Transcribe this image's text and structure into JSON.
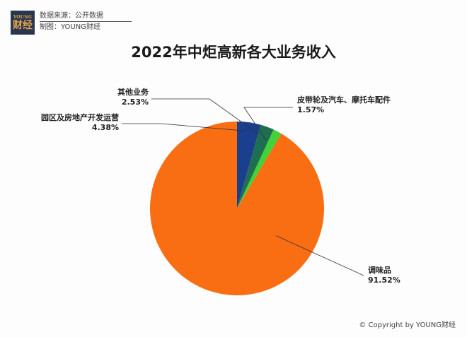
{
  "header": {
    "logo_top": "YOUNG",
    "logo_bottom": "财经",
    "source_line": "数据来源：公开数据",
    "made_by_line": "制图：YOUNG财经"
  },
  "footer": {
    "copyright": "© Copyright by YOUNG财经"
  },
  "colors": {
    "seasoning": "#f96e12",
    "property": "#1b3f8f",
    "other": "#1e6e52",
    "belt": "#41d238",
    "leader": "#333333"
  },
  "chart_data": {
    "type": "pie",
    "title": "2022年中炬高新各大业务收入",
    "slices": [
      {
        "label": "调味品",
        "percent_label": "91.52%",
        "value": 91.52,
        "color_key": "seasoning"
      },
      {
        "label": "园区及房地产开发运营",
        "percent_label": "4.38%",
        "value": 4.38,
        "color_key": "property"
      },
      {
        "label": "其他业务",
        "percent_label": "2.53%",
        "value": 2.53,
        "color_key": "other"
      },
      {
        "label": "皮带轮及汽车、摩托车配件",
        "percent_label": "1.57%",
        "value": 1.57,
        "color_key": "belt"
      }
    ]
  }
}
